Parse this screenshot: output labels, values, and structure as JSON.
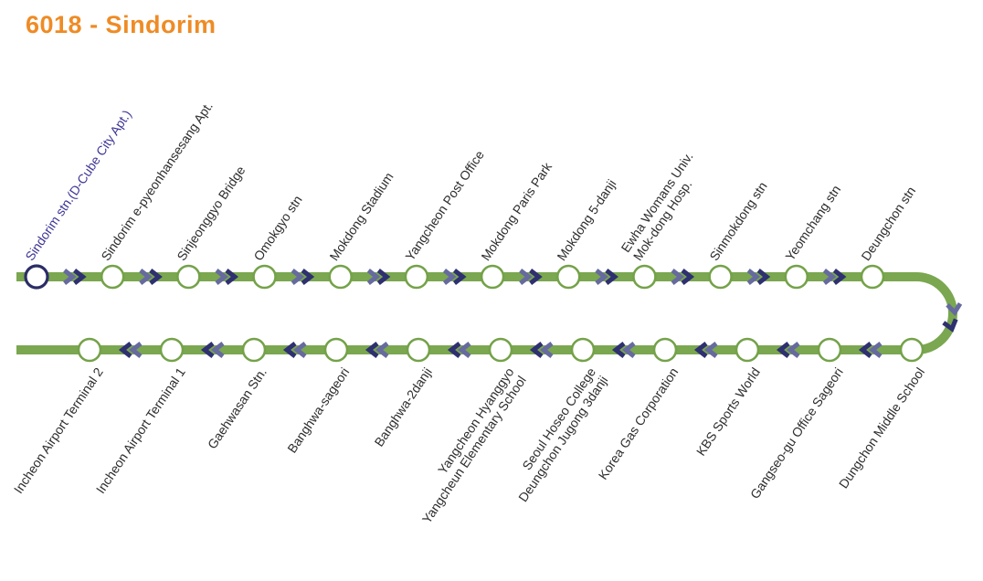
{
  "title": {
    "text": "6018 - Sindorim"
  },
  "colors": {
    "title": "#EF8B25",
    "route_line": "#7AA750",
    "station_ring": "#74A249",
    "station_fill": "#FFFFFF",
    "origin_ring": "#2B2D66",
    "origin_label": "#3D3595",
    "label": "#2D2D2D",
    "chevron_dark": "#2E3070",
    "chevron_light": "#666A9E"
  },
  "route": {
    "outbound": {
      "direction": "right",
      "stations": [
        {
          "lines": [
            "Sindorim stn.(D-Cube City Apt.)"
          ],
          "origin": true
        },
        {
          "lines": [
            "Sindorim e-pyeonhansesang Apt."
          ]
        },
        {
          "lines": [
            "Sinjeonggyo Bridge"
          ]
        },
        {
          "lines": [
            "Omokgyo stn"
          ]
        },
        {
          "lines": [
            "Mokdong Stadium"
          ]
        },
        {
          "lines": [
            "Yangcheon Post Office"
          ]
        },
        {
          "lines": [
            "Mokdong Paris Park"
          ]
        },
        {
          "lines": [
            "Mokdong 5-danji"
          ]
        },
        {
          "lines": [
            "Ewha Womans Univ.",
            "Mok-dong Hosp."
          ]
        },
        {
          "lines": [
            "Sinmokdong stn"
          ]
        },
        {
          "lines": [
            "Yeomchang stn"
          ]
        },
        {
          "lines": [
            "Deungchon stn"
          ]
        }
      ]
    },
    "inbound": {
      "direction": "left",
      "stations": [
        {
          "lines": [
            "Incheon Airport Terminal 2"
          ]
        },
        {
          "lines": [
            "Incheon Airport Terminal 1"
          ]
        },
        {
          "lines": [
            "Gaehwasan Stn."
          ]
        },
        {
          "lines": [
            "Banghwa-sageori"
          ]
        },
        {
          "lines": [
            "Banghwa-2danji"
          ]
        },
        {
          "lines": [
            "Yangcheon Hyanggyo",
            "Yangcheun Elementary School"
          ]
        },
        {
          "lines": [
            "Seoul Hoseo College",
            "Deungchon Jugong 3danji"
          ]
        },
        {
          "lines": [
            "Korea Gas Corporation"
          ]
        },
        {
          "lines": [
            "KBS Sports World"
          ]
        },
        {
          "lines": [
            "Gangseo-gu Office Sageori"
          ]
        },
        {
          "lines": [
            "Dungchon Middle School"
          ]
        }
      ]
    },
    "turnaround": {
      "chevrons_direction": "down"
    }
  }
}
